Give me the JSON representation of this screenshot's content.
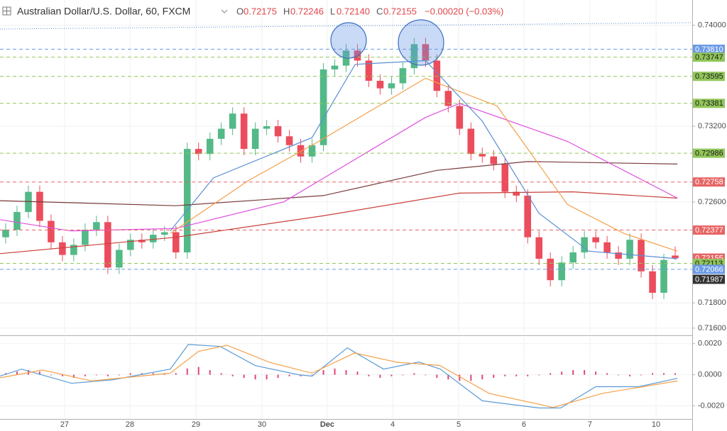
{
  "header": {
    "title": "Australian Dollar/U.S. Dollar, 60, FXCM",
    "o_label": "O",
    "o": "0.72175",
    "h_label": "H",
    "h": "0.72246",
    "l_label": "L",
    "l": "0.72140",
    "c_label": "C",
    "c": "0.72155",
    "change": "−0.00020 (−0.03%)"
  },
  "chart_data": [
    {
      "type": "candlestick",
      "up_color": "#53b987",
      "down_color": "#eb4d5c",
      "xlim": [
        -0.5,
        60.5
      ],
      "ylim": [
        0.7156,
        0.742
      ],
      "xticks": [
        {
          "value": 5.19,
          "label": "27"
        },
        {
          "value": 10.95,
          "label": "28"
        },
        {
          "value": 16.77,
          "label": "29"
        },
        {
          "value": 22.59,
          "label": "30"
        },
        {
          "value": 28.34,
          "label": "Dec"
        },
        {
          "value": 34.1,
          "label": "4"
        },
        {
          "value": 39.92,
          "label": "5"
        },
        {
          "value": 45.67,
          "label": "6"
        },
        {
          "value": 51.49,
          "label": "7"
        },
        {
          "value": 57.31,
          "label": "10"
        }
      ],
      "yticks": [
        {
          "value": 0.74,
          "label": "0.74000"
        },
        {
          "value": 0.732,
          "label": "0.73200"
        },
        {
          "value": 0.726,
          "label": "0.72600"
        },
        {
          "value": 0.718,
          "label": "0.71800"
        },
        {
          "value": 0.716,
          "label": "0.71600"
        }
      ],
      "grid": true,
      "open": [
        0.7232,
        0.7238,
        0.7252,
        0.7268,
        0.7245,
        0.7228,
        0.7218,
        0.7226,
        0.7238,
        0.7244,
        0.7208,
        0.7222,
        0.723,
        0.7228,
        0.7234,
        0.7236,
        0.722,
        0.7302,
        0.7298,
        0.731,
        0.7318,
        0.733,
        0.7302,
        0.7318,
        0.732,
        0.7312,
        0.7305,
        0.7296,
        0.7305,
        0.7365,
        0.7368,
        0.738,
        0.7372,
        0.7356,
        0.735,
        0.7354,
        0.7366,
        0.7385,
        0.7372,
        0.7348,
        0.7336,
        0.7318,
        0.7298,
        0.7296,
        0.729,
        0.7268,
        0.7265,
        0.7232,
        0.7215,
        0.7198,
        0.7212,
        0.722,
        0.7232,
        0.7228,
        0.722,
        0.7215,
        0.723,
        0.7205,
        0.7188,
        0.72175
      ],
      "high": [
        0.7243,
        0.7257,
        0.7273,
        0.7273,
        0.725,
        0.7233,
        0.7231,
        0.7243,
        0.7249,
        0.7249,
        0.7227,
        0.7235,
        0.7235,
        0.7239,
        0.7241,
        0.7241,
        0.7307,
        0.7307,
        0.7315,
        0.7323,
        0.7335,
        0.7335,
        0.7323,
        0.7325,
        0.7325,
        0.7317,
        0.731,
        0.731,
        0.737,
        0.7373,
        0.7385,
        0.7385,
        0.7377,
        0.7361,
        0.7359,
        0.7371,
        0.739,
        0.739,
        0.7377,
        0.7353,
        0.7341,
        0.7323,
        0.7303,
        0.7301,
        0.7295,
        0.7273,
        0.727,
        0.7237,
        0.722,
        0.7217,
        0.7225,
        0.7237,
        0.7237,
        0.7233,
        0.7225,
        0.7235,
        0.7235,
        0.721,
        0.7219,
        0.72246
      ],
      "low": [
        0.7227,
        0.7233,
        0.7247,
        0.724,
        0.7223,
        0.7213,
        0.7213,
        0.7221,
        0.7233,
        0.7203,
        0.7203,
        0.7217,
        0.7223,
        0.7223,
        0.7229,
        0.7215,
        0.7215,
        0.7293,
        0.7293,
        0.7305,
        0.7313,
        0.7297,
        0.7297,
        0.7313,
        0.7307,
        0.73,
        0.7291,
        0.7291,
        0.73,
        0.736,
        0.7363,
        0.7367,
        0.7351,
        0.7345,
        0.7345,
        0.7349,
        0.7361,
        0.7367,
        0.7343,
        0.7331,
        0.7313,
        0.7293,
        0.7291,
        0.7285,
        0.7263,
        0.726,
        0.7227,
        0.721,
        0.7193,
        0.7193,
        0.7207,
        0.7215,
        0.7223,
        0.7215,
        0.721,
        0.721,
        0.72,
        0.7183,
        0.7183,
        0.7214
      ],
      "close": [
        0.7238,
        0.7252,
        0.7268,
        0.7245,
        0.7228,
        0.7218,
        0.7226,
        0.7238,
        0.7244,
        0.7208,
        0.7222,
        0.723,
        0.7228,
        0.7234,
        0.7236,
        0.722,
        0.7302,
        0.7298,
        0.731,
        0.7318,
        0.733,
        0.7302,
        0.7318,
        0.732,
        0.7312,
        0.7305,
        0.7296,
        0.7305,
        0.7365,
        0.7368,
        0.738,
        0.7372,
        0.7356,
        0.735,
        0.7354,
        0.7366,
        0.7385,
        0.7372,
        0.7348,
        0.7336,
        0.7318,
        0.7298,
        0.7296,
        0.729,
        0.7268,
        0.7265,
        0.7232,
        0.7215,
        0.7198,
        0.7212,
        0.722,
        0.7232,
        0.7228,
        0.722,
        0.7215,
        0.723,
        0.7205,
        0.7188,
        0.7214,
        0.72155
      ],
      "series": [
        {
          "color": "#7b3b3b",
          "x": [
            -0.5,
            15,
            28,
            38,
            46,
            59.2
          ],
          "values": [
            0.7261,
            0.7257,
            0.7265,
            0.7285,
            0.7292,
            0.729
          ]
        },
        {
          "color": "#c9403a",
          "x": [
            -0.5,
            15,
            28,
            40,
            50,
            59.2
          ],
          "values": [
            0.7219,
            0.7232,
            0.7249,
            0.7267,
            0.7268,
            0.7263
          ]
        },
        {
          "color": "#e04fe0",
          "x": [
            -0.5,
            5.75,
            15,
            24.5,
            37,
            40,
            49.5,
            59.2
          ],
          "values": [
            0.7246,
            0.7237,
            0.7239,
            0.726,
            0.7327,
            0.7338,
            0.7308,
            0.7263
          ]
        },
        {
          "color": "#f5a04a",
          "x": [
            14.5,
            21.4,
            27.6,
            37,
            43.3,
            49.5,
            54.5,
            59.2
          ],
          "values": [
            0.7235,
            0.7277,
            0.7308,
            0.7358,
            0.7336,
            0.7258,
            0.7235,
            0.7221
          ]
        },
        {
          "color": "#5b8fd4",
          "x": [
            14.5,
            18.3,
            27,
            30.8,
            37,
            42,
            47,
            51.4,
            59.2
          ],
          "values": [
            0.7237,
            0.7279,
            0.7311,
            0.7369,
            0.7372,
            0.7324,
            0.7251,
            0.7221,
            0.7215
          ]
        }
      ],
      "levels": [
        {
          "value": 0.7381,
          "label": "0.73810",
          "color": "#6b9be6",
          "text_color": "#ffffff",
          "line": true
        },
        {
          "value": 0.73747,
          "label": "0.73747",
          "color": "#92c65a",
          "text_color": "#1a1a1a",
          "line": true
        },
        {
          "value": 0.73595,
          "label": "0.73595",
          "color": "#92c65a",
          "text_color": "#1a1a1a",
          "line": true
        },
        {
          "value": 0.73381,
          "label": "0.73381",
          "color": "#92c65a",
          "text_color": "#1a1a1a",
          "line": true
        },
        {
          "value": 0.72986,
          "label": "0.72986",
          "color": "#92c65a",
          "text_color": "#1a1a1a",
          "line": true
        },
        {
          "value": 0.72758,
          "label": "0.72758",
          "color": "#e86464",
          "text_color": "#ffffff",
          "line": true
        },
        {
          "value": 0.72377,
          "label": "0.72377",
          "color": "#e86464",
          "text_color": "#ffffff",
          "line": true
        },
        {
          "value": 0.72155,
          "label": "0.72155",
          "color": "#e86464",
          "text_color": "#ffffff",
          "line": false
        },
        {
          "value": 0.72113,
          "label": "0.72113",
          "color": "#92c65a",
          "text_color": "#1a1a1a",
          "line": true
        },
        {
          "value": 0.72066,
          "label": "0.72066",
          "color": "#6b9be6",
          "text_color": "#ffffff",
          "line": true
        },
        {
          "value": 0.71987,
          "label": "0.71987",
          "color": "#333333",
          "text_color": "#ffffff",
          "line": false
        }
      ]
    },
    {
      "type": "macd",
      "ylim": [
        -0.0028,
        0.0024
      ],
      "yticks": [
        {
          "value": 0.002,
          "label": "0.0020"
        },
        {
          "value": 0,
          "label": "0.0000"
        },
        {
          "value": -0.002,
          "label": "-0.0020"
        }
      ],
      "histogram_color": "#e0457b",
      "histogram": [
        0.0001,
        0.0002,
        0.0003,
        0.0002,
        0,
        -0.0001,
        -0.0002,
        -0.0001,
        0,
        -0.0001,
        0,
        0.0001,
        0.0001,
        0.0001,
        0.0001,
        0.0001,
        0.0004,
        0.0005,
        0.0003,
        0.0001,
        -0.0001,
        -0.0002,
        -0.0003,
        -0.0003,
        -0.0002,
        -0.0001,
        -0.0001,
        0,
        0.0003,
        0.0004,
        0.0003,
        0.0002,
        -0.0001,
        -0.0002,
        -0.0001,
        0,
        0.0001,
        0,
        -0.0002,
        -0.0003,
        -0.0004,
        -0.0004,
        -0.0003,
        -0.0002,
        -0.0001,
        -0.0001,
        -0.0001,
        0,
        0.0001,
        0.0002,
        0.0003,
        0.0003,
        0.0002,
        0.0001,
        0,
        -0.0001,
        0,
        0.0001,
        0.0001,
        0.0001
      ],
      "series": [
        {
          "color": "#5b9bd5",
          "x": [
            -0.5,
            1.4,
            5.8,
            9.5,
            14.5,
            16.1,
            18.9,
            22,
            25.8,
            27,
            30.1,
            33.3,
            36.4,
            38.3,
            42,
            47,
            48.9,
            52,
            55.8,
            59.2
          ],
          "values": [
            -9e-05,
            0.00036,
            -0.00055,
            -0.00032,
            0.00036,
            0.00195,
            0.00182,
            0.00059,
            0,
            -9e-05,
            0.00173,
            0.00036,
            0.00082,
            0.00036,
            -0.00168,
            -0.00214,
            -0.00214,
            -0.00077,
            -0.00077,
            -0.00023
          ]
        },
        {
          "color": "#f5a04a",
          "x": [
            -0.5,
            3.25,
            7.6,
            14.5,
            17,
            19.5,
            23.25,
            27,
            30.75,
            34.5,
            38.25,
            42.6,
            48.25,
            52.6,
            59.2
          ],
          "values": [
            -0.0002,
            0.0003,
            -0.0004,
            0.0001,
            0.0015,
            0.0019,
            0.0008,
            0.0001,
            0.0014,
            0.0008,
            0.0006,
            -0.0012,
            -0.0021,
            -0.0012,
            -0.0004
          ]
        }
      ]
    }
  ]
}
